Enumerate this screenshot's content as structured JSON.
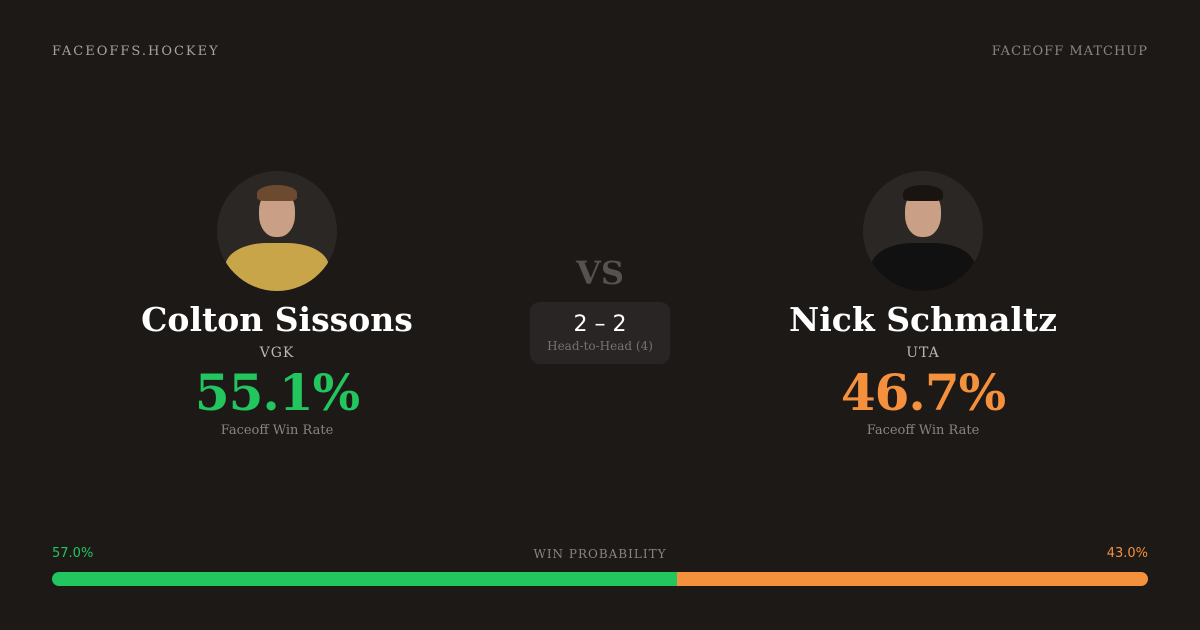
{
  "header": {
    "brand": "FACEOFFS.HOCKEY",
    "tag": "FACEOFF MATCHUP"
  },
  "colors": {
    "background": "#1c1917",
    "green": "#22c55e",
    "orange": "#f5903d"
  },
  "players": [
    {
      "name": "Colton Sissons",
      "team": "VGK",
      "rate": "55.1%",
      "rate_label": "Faceoff Win Rate",
      "jersey": "#c9a54a",
      "hair": "#6b4a2f"
    },
    {
      "name": "Nick Schmaltz",
      "team": "UTA",
      "rate": "46.7%",
      "rate_label": "Faceoff Win Rate",
      "jersey": "#111111",
      "hair": "#1a1410"
    }
  ],
  "vs": "VS",
  "head_to_head": {
    "score": "2 – 2",
    "label": "Head-to-Head (4)"
  },
  "win_probability": {
    "label": "WIN PROBABILITY",
    "left": "57.0%",
    "right": "43.0%",
    "left_value": 57.0,
    "right_value": 43.0
  }
}
